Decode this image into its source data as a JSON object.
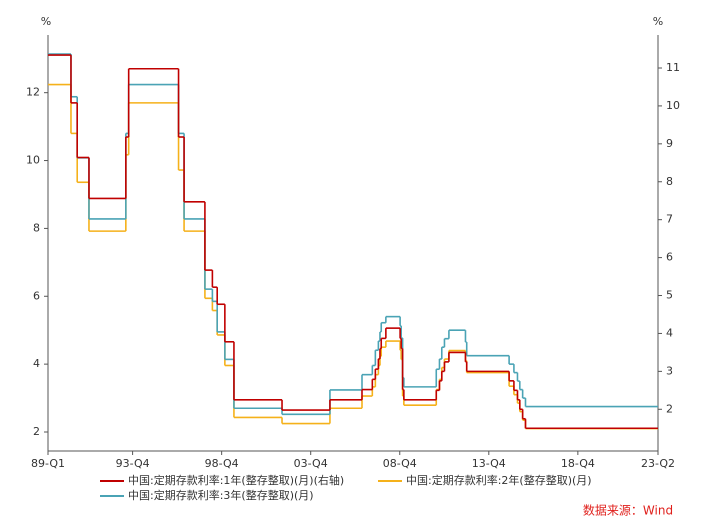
{
  "chart_data": {
    "type": "step",
    "y_unit": "%",
    "y2_unit": "%",
    "x": [
      1989.0,
      1990.29,
      1990.64,
      1991.3,
      1993.37,
      1993.53,
      1996.33,
      1996.64,
      1997.81,
      1998.23,
      1998.5,
      1998.93,
      1999.44,
      2002.14,
      2004.83,
      2006.63,
      2007.21,
      2007.38,
      2007.55,
      2007.64,
      2007.71,
      2007.97,
      2008.77,
      2008.83,
      2008.91,
      2008.98,
      2010.8,
      2010.98,
      2011.11,
      2011.26,
      2011.51,
      2012.44,
      2012.51,
      2014.89,
      2015.16,
      2015.36,
      2015.49,
      2015.65,
      2015.81,
      2023.25
    ],
    "series": [
      {
        "name": "中国:定期存款利率:1年(整存整取)(月)(右轴)",
        "color": "#c00000",
        "axis": "y2",
        "values": [
          11.34,
          10.08,
          8.64,
          7.56,
          9.18,
          10.98,
          9.18,
          7.47,
          5.67,
          5.22,
          4.77,
          3.78,
          2.25,
          1.98,
          2.25,
          2.52,
          2.79,
          3.06,
          3.33,
          3.6,
          3.87,
          4.14,
          3.87,
          3.6,
          2.52,
          2.25,
          2.5,
          2.75,
          3.0,
          3.25,
          3.5,
          3.25,
          3.0,
          2.75,
          2.5,
          2.25,
          2.0,
          1.75,
          1.5,
          1.5
        ]
      },
      {
        "name": "中国:定期存款利率:2年(整存整取)(月)",
        "color": "#f5b11a",
        "values": [
          12.24,
          10.8,
          9.36,
          7.92,
          10.17,
          11.7,
          9.72,
          7.92,
          5.94,
          5.58,
          4.86,
          3.96,
          2.43,
          2.25,
          2.7,
          3.06,
          3.33,
          3.69,
          3.96,
          4.23,
          4.5,
          4.68,
          4.41,
          4.14,
          3.06,
          2.79,
          3.25,
          3.55,
          3.9,
          4.15,
          4.4,
          4.1,
          3.75,
          3.35,
          3.1,
          2.85,
          2.6,
          2.35,
          2.1,
          2.1
        ]
      },
      {
        "name": "中国:定期存款利率:3年(整存整取)(月)",
        "color": "#4aa3b5",
        "values": [
          13.14,
          11.88,
          10.08,
          8.28,
          10.8,
          12.24,
          10.8,
          8.28,
          6.21,
          5.85,
          4.95,
          4.14,
          2.7,
          2.52,
          3.24,
          3.69,
          3.96,
          4.41,
          4.68,
          4.95,
          5.22,
          5.4,
          5.13,
          4.77,
          3.6,
          3.33,
          3.85,
          4.15,
          4.5,
          4.75,
          5.0,
          4.65,
          4.25,
          4.0,
          3.75,
          3.5,
          3.25,
          3.0,
          2.75,
          2.75
        ]
      }
    ],
    "xlim": [
      1989.0,
      2023.25
    ],
    "xticks": [
      {
        "value": 1989.0,
        "label": "89-Q1"
      },
      {
        "value": 1993.75,
        "label": "93-Q4"
      },
      {
        "value": 1998.75,
        "label": "98-Q4"
      },
      {
        "value": 2003.75,
        "label": "03-Q4"
      },
      {
        "value": 2008.75,
        "label": "08-Q4"
      },
      {
        "value": 2013.75,
        "label": "13-Q4"
      },
      {
        "value": 2018.75,
        "label": "18-Q4"
      },
      {
        "value": 2023.25,
        "label": "23-Q2"
      }
    ],
    "ylim": [
      1.44,
      13.7
    ],
    "yticks": [
      2,
      4,
      6,
      8,
      10,
      12
    ],
    "y2lim": [
      0.9,
      11.87
    ],
    "y2ticks": [
      2,
      3,
      4,
      5,
      6,
      7,
      8,
      9,
      10,
      11
    ],
    "source": "数据来源：Wind"
  }
}
